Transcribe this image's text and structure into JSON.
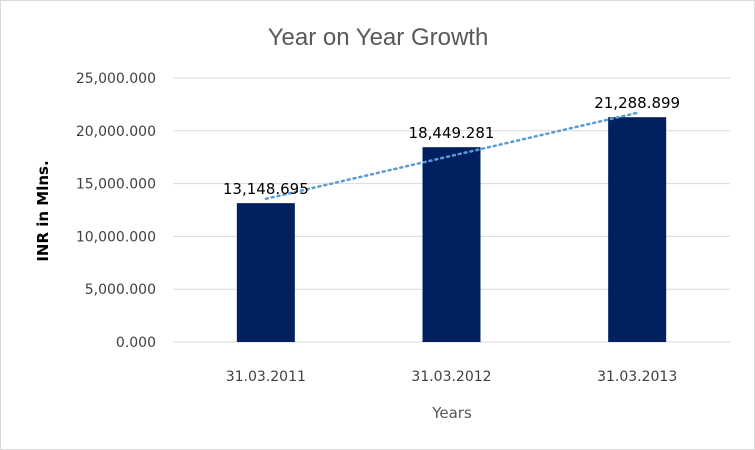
{
  "chart_data": {
    "type": "bar",
    "title": "Year on Year Growth",
    "xlabel": "Years",
    "ylabel": "INR in Mlns.",
    "categories": [
      "31.03.2011",
      "31.03.2012",
      "31.03.2013"
    ],
    "values": [
      13148.695,
      18449.281,
      21288.899
    ],
    "value_labels": [
      "13,148.695",
      "18,449.281",
      "21,288.899"
    ],
    "ylim": [
      0,
      25000
    ],
    "yticks": [
      0,
      5000,
      10000,
      15000,
      20000,
      25000
    ],
    "ytick_labels": [
      "0.000",
      "5,000.000",
      "10,000.000",
      "15,000.000",
      "20,000.000",
      "25,000.000"
    ],
    "grid": true,
    "trendline": "linear",
    "colors": {
      "bar": "#002060",
      "trendline": "#5b9bd5",
      "grid": "#d9d9d9"
    }
  }
}
